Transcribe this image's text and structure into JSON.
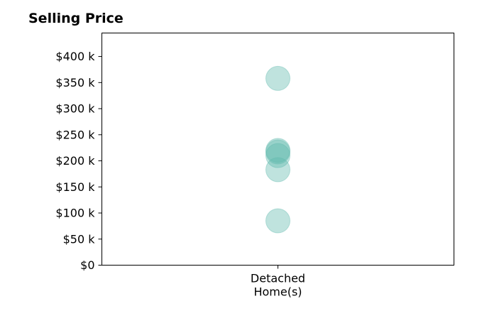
{
  "chart_data": {
    "type": "scatter",
    "title": "Selling Price",
    "xlabel": "",
    "ylabel": "",
    "categories": [
      "Detached\nHome(s)"
    ],
    "y_tick_labels": [
      "$0",
      "$50 k",
      "$100 k",
      "$150 k",
      "$200 k",
      "$250 k",
      "$300 k",
      "$350 k",
      "$400 k"
    ],
    "y_ticks": [
      0,
      50000,
      100000,
      150000,
      200000,
      250000,
      300000,
      350000,
      400000
    ],
    "ylim": [
      0,
      445000
    ],
    "grid": false,
    "legend": "none",
    "series": [
      {
        "category": "Detached\nHome(s)",
        "values": [
          358000,
          220000,
          217000,
          210000,
          183000,
          85000
        ]
      }
    ],
    "marker_color": "#5fb8ad",
    "marker_opacity": 0.4
  }
}
